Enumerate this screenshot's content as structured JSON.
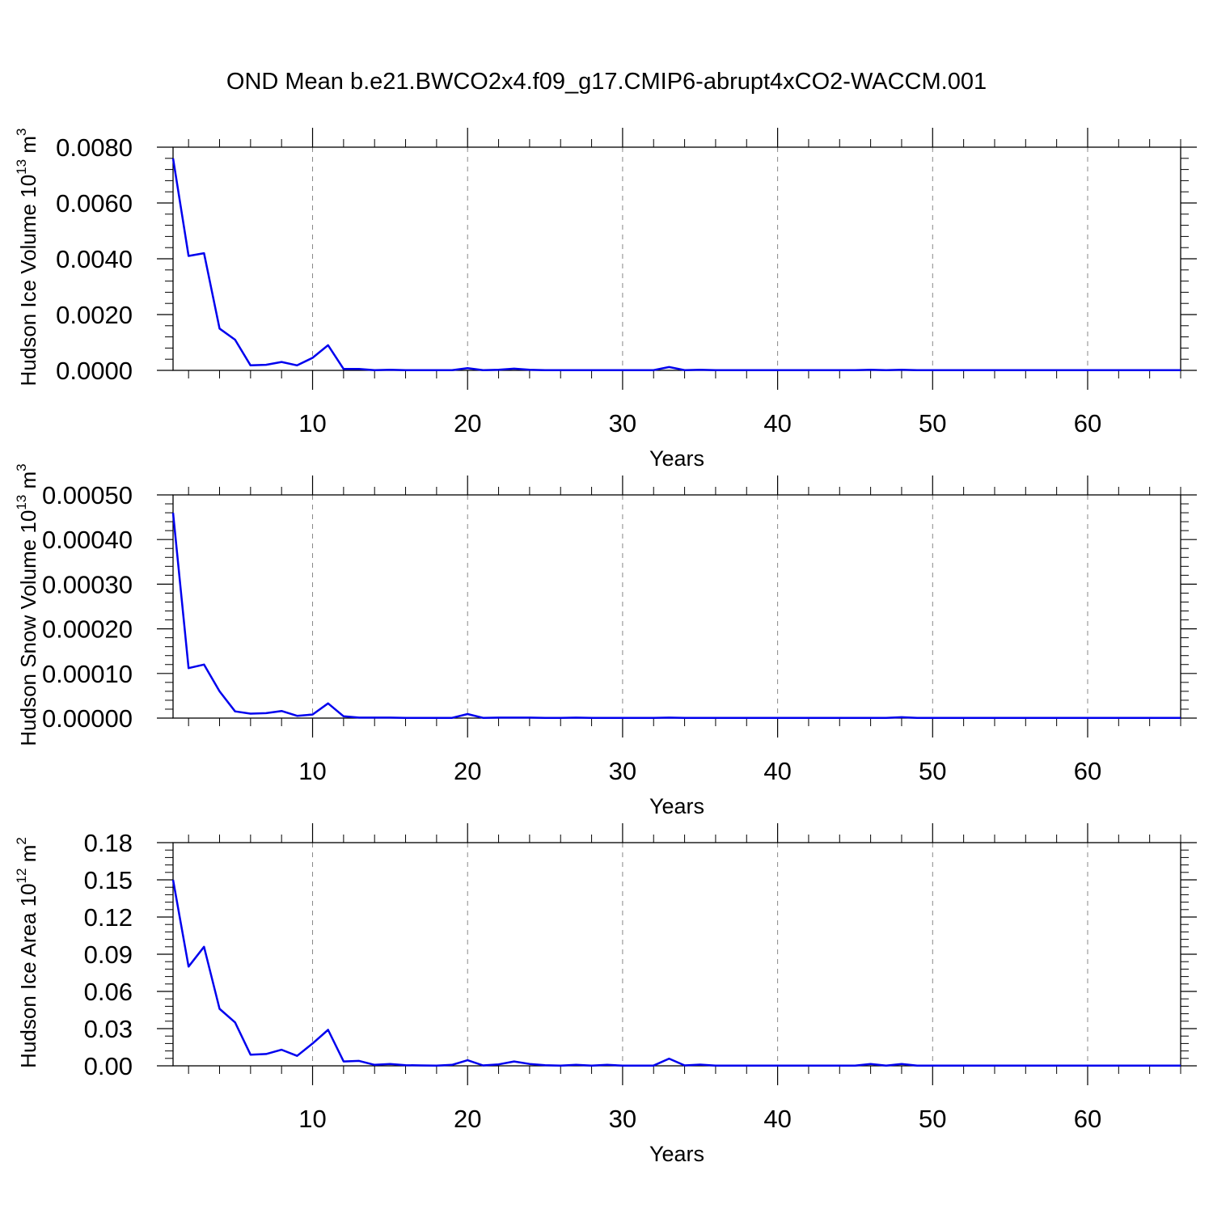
{
  "title": "OND Mean b.e21.BWCO2x4.f09_g17.CMIP6-abrupt4xCO2-WACCM.001",
  "line_color": "#0000ee",
  "chart_data": [
    {
      "type": "line",
      "ylabel": {
        "text": "Hudson Ice Volume 10",
        "sup": "13",
        "unit": " m",
        "unit_sup": "3"
      },
      "xlabel": "Years",
      "xlim": [
        1,
        66
      ],
      "ylim": [
        0,
        0.008
      ],
      "yticks": [
        0,
        0.002,
        0.004,
        0.006,
        0.008
      ],
      "ytick_labels": [
        "0.0000",
        "0.0020",
        "0.0040",
        "0.0060",
        "0.0080"
      ],
      "xticks": [
        10,
        20,
        30,
        40,
        50,
        60
      ],
      "xtick_labels": [
        "10",
        "20",
        "30",
        "40",
        "50",
        "60"
      ],
      "grid": "vertical-dashed",
      "series": [
        {
          "x": [
            1,
            2,
            3,
            4,
            5,
            6,
            7,
            8,
            9,
            10,
            11,
            12,
            13,
            14,
            15,
            16,
            17,
            18,
            19,
            20,
            21,
            22,
            23,
            24,
            25,
            26,
            27,
            28,
            29,
            30,
            31,
            32,
            33,
            34,
            35,
            36,
            37,
            38,
            39,
            40,
            41,
            42,
            43,
            44,
            45,
            46,
            47,
            48,
            49,
            50,
            51,
            52,
            53,
            54,
            55,
            56,
            57,
            58,
            59,
            60,
            61,
            62,
            63,
            64,
            65,
            66
          ],
          "values": [
            0.0076,
            0.0041,
            0.0042,
            0.0015,
            0.0011,
            0.00018,
            0.0002,
            0.0003,
            0.00018,
            0.00045,
            0.0009,
            5e-05,
            5e-05,
            1e-05,
            2e-05,
            1e-05,
            1e-05,
            1e-05,
            1e-05,
            8e-05,
            1e-05,
            2e-05,
            6e-05,
            2e-05,
            1e-05,
            1e-05,
            1e-05,
            1e-05,
            1e-05,
            1e-05,
            1e-05,
            1e-05,
            0.00012,
            1e-05,
            2e-05,
            1e-05,
            1e-05,
            1e-05,
            1e-05,
            1e-05,
            1e-05,
            1e-05,
            1e-05,
            1e-05,
            1e-05,
            2e-05,
            1e-05,
            2e-05,
            1e-05,
            1e-05,
            1e-05,
            1e-05,
            1e-05,
            1e-05,
            1e-05,
            1e-05,
            1e-05,
            1e-05,
            1e-05,
            1e-05,
            1e-05,
            1e-05,
            1e-05,
            1e-05,
            1e-05,
            1e-05
          ]
        }
      ]
    },
    {
      "type": "line",
      "ylabel": {
        "text": "Hudson Snow Volume 10",
        "sup": "13",
        "unit": " m",
        "unit_sup": "3"
      },
      "xlabel": "Years",
      "xlim": [
        1,
        66
      ],
      "ylim": [
        0,
        0.0005
      ],
      "yticks": [
        0,
        0.0001,
        0.0002,
        0.0003,
        0.0004,
        0.0005
      ],
      "ytick_labels": [
        "0.00000",
        "0.00010",
        "0.00020",
        "0.00030",
        "0.00040",
        "0.00050"
      ],
      "xticks": [
        10,
        20,
        30,
        40,
        50,
        60
      ],
      "xtick_labels": [
        "10",
        "20",
        "30",
        "40",
        "50",
        "60"
      ],
      "grid": "vertical-dashed",
      "series": [
        {
          "x": [
            1,
            2,
            3,
            4,
            5,
            6,
            7,
            8,
            9,
            10,
            11,
            12,
            13,
            14,
            15,
            16,
            17,
            18,
            19,
            20,
            21,
            22,
            23,
            24,
            25,
            26,
            27,
            28,
            29,
            30,
            31,
            32,
            33,
            34,
            35,
            36,
            37,
            38,
            39,
            40,
            41,
            42,
            43,
            44,
            45,
            46,
            47,
            48,
            49,
            50,
            51,
            52,
            53,
            54,
            55,
            56,
            57,
            58,
            59,
            60,
            61,
            62,
            63,
            64,
            65,
            66
          ],
          "values": [
            0.00046,
            0.000112,
            0.00012,
            6e-05,
            1.5e-05,
            1e-05,
            1.1e-05,
            1.6e-05,
            5e-06,
            8e-06,
            3.3e-05,
            4e-06,
            1e-06,
            1e-06,
            1e-06,
            5e-07,
            5e-07,
            5e-07,
            5e-07,
            9e-06,
            5e-07,
            1e-06,
            1e-06,
            1e-06,
            5e-07,
            5e-07,
            1e-06,
            5e-07,
            5e-07,
            5e-07,
            5e-07,
            5e-07,
            1e-06,
            5e-07,
            5e-07,
            5e-07,
            5e-07,
            5e-07,
            5e-07,
            5e-07,
            5e-07,
            5e-07,
            5e-07,
            5e-07,
            5e-07,
            5e-07,
            5e-07,
            2e-06,
            5e-07,
            5e-07,
            5e-07,
            5e-07,
            5e-07,
            5e-07,
            5e-07,
            5e-07,
            5e-07,
            5e-07,
            5e-07,
            5e-07,
            5e-07,
            5e-07,
            5e-07,
            5e-07,
            5e-07,
            5e-07
          ]
        }
      ]
    },
    {
      "type": "line",
      "ylabel": {
        "text": "Hudson Ice Area 10",
        "sup": "12",
        "unit": " m",
        "unit_sup": "2"
      },
      "xlabel": "Years",
      "xlim": [
        1,
        66
      ],
      "ylim": [
        0,
        0.18
      ],
      "yticks": [
        0,
        0.03,
        0.06,
        0.09,
        0.12,
        0.15,
        0.18
      ],
      "ytick_labels": [
        "0.00",
        "0.03",
        "0.06",
        "0.09",
        "0.12",
        "0.15",
        "0.18"
      ],
      "xticks": [
        10,
        20,
        30,
        40,
        50,
        60
      ],
      "xtick_labels": [
        "10",
        "20",
        "30",
        "40",
        "50",
        "60"
      ],
      "grid": "vertical-dashed",
      "series": [
        {
          "x": [
            1,
            2,
            3,
            4,
            5,
            6,
            7,
            8,
            9,
            10,
            11,
            12,
            13,
            14,
            15,
            16,
            17,
            18,
            19,
            20,
            21,
            22,
            23,
            24,
            25,
            26,
            27,
            28,
            29,
            30,
            31,
            32,
            33,
            34,
            35,
            36,
            37,
            38,
            39,
            40,
            41,
            42,
            43,
            44,
            45,
            46,
            47,
            48,
            49,
            50,
            51,
            52,
            53,
            54,
            55,
            56,
            57,
            58,
            59,
            60,
            61,
            62,
            63,
            64,
            65,
            66
          ],
          "values": [
            0.15,
            0.08,
            0.096,
            0.046,
            0.035,
            0.009,
            0.0095,
            0.013,
            0.008,
            0.018,
            0.029,
            0.0035,
            0.004,
            0.0008,
            0.0015,
            0.0005,
            0.0003,
            0.0002,
            0.0008,
            0.0045,
            0.0003,
            0.0012,
            0.0035,
            0.0015,
            0.0005,
            0.0002,
            0.0008,
            0.0002,
            0.0008,
            0.0002,
            0.0002,
            0.0002,
            0.0058,
            0.0003,
            0.001,
            0.0002,
            0.0002,
            0.0002,
            0.0002,
            0.0002,
            0.0002,
            0.0002,
            0.0002,
            0.0002,
            0.0002,
            0.0015,
            0.0002,
            0.0015,
            0.0002,
            0.0002,
            0.0002,
            0.0002,
            0.0002,
            0.0002,
            0.0002,
            0.0002,
            0.0002,
            0.0002,
            0.0002,
            0.0002,
            0.0002,
            0.0002,
            0.0002,
            0.0002,
            0.0002,
            0.0002
          ]
        }
      ]
    }
  ]
}
